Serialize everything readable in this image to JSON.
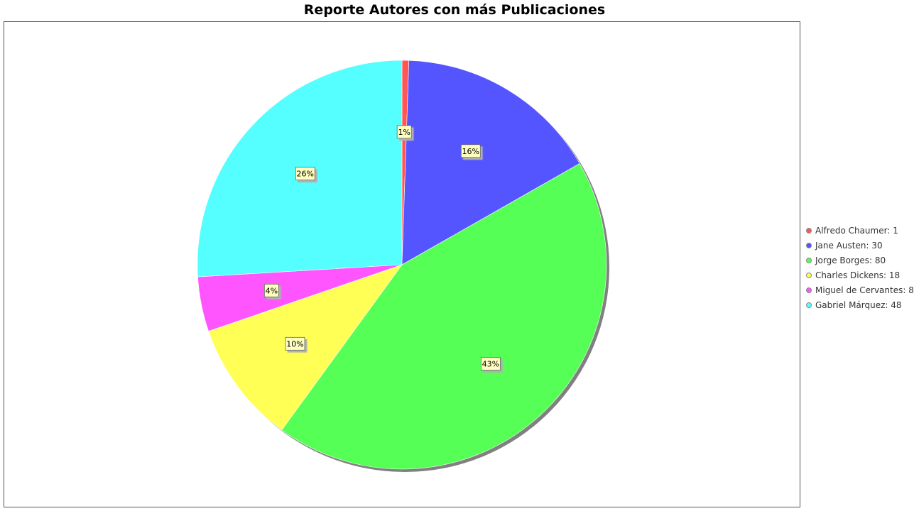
{
  "chart_data": {
    "type": "pie",
    "title": "Reporte Autores con más Publicaciones",
    "categories": [
      "Alfredo Chaumer",
      "Jane Austen",
      "Jorge Borges",
      "Charles Dickens",
      "Miguel de Cervantes",
      "Gabriel Márquez"
    ],
    "values": [
      1,
      30,
      80,
      18,
      8,
      48
    ],
    "percent_labels": [
      "1%",
      "16%",
      "43%",
      "10%",
      "4%",
      "26%"
    ],
    "legend_labels": [
      "Alfredo Chaumer: 1",
      "Jane Austen: 30",
      "Jorge Borges: 80",
      "Charles Dickens: 18",
      "Miguel de Cervantes: 8",
      "Gabriel Márquez: 48"
    ],
    "colors": [
      "#ff5555",
      "#5555ff",
      "#55ff55",
      "#ffff55",
      "#ff55ff",
      "#55ffff"
    ],
    "legend_position": "right"
  }
}
